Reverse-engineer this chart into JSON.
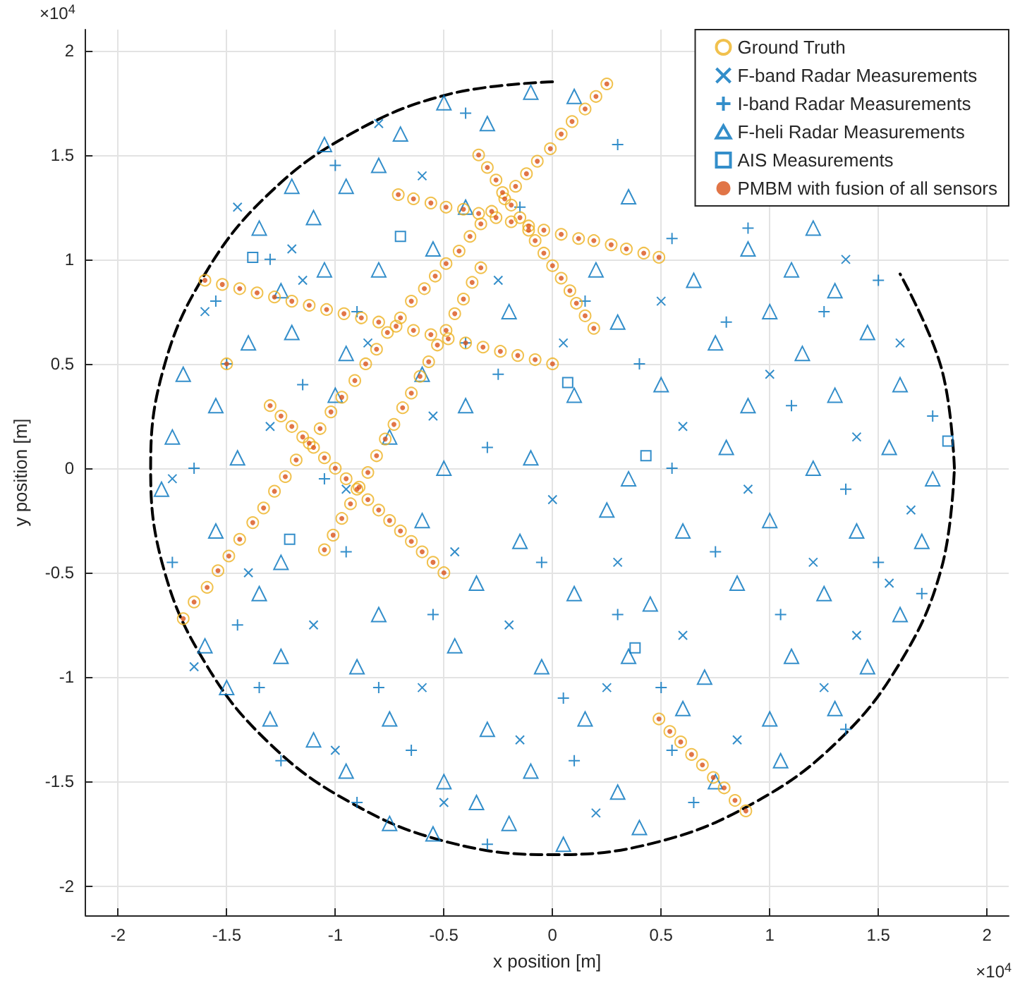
{
  "chart_data": {
    "type": "scatter",
    "xlabel": "x position [m]",
    "ylabel": "y position [m]",
    "annotations": [
      "×10$^{4}$",
      "×10$^{4}$"
    ],
    "xlim": [
      -2.15,
      2.1
    ],
    "ylim": [
      -2.14,
      2.1
    ],
    "xticks": [
      -2,
      -1.5,
      -1,
      -0.5,
      0,
      0.5,
      1,
      1.5,
      2
    ],
    "yticks": [
      -2,
      -1.5,
      -1,
      -0.5,
      0,
      0.5,
      1,
      1.5,
      2
    ],
    "grid": true,
    "legend": "top right",
    "series": [
      {
        "type": "line",
        "color": "#000000",
        "line_style": "dashed",
        "marker": "none",
        "x": [
          1.85,
          1.79,
          1.6,
          1.31,
          0.93,
          0.48,
          0,
          -0.48,
          -0.93,
          -1.31,
          -1.6,
          -1.79,
          -1.85,
          -1.79,
          -1.6,
          -1.31,
          -0.93,
          -0.48,
          0,
          0.48,
          0.93,
          1.31,
          1.6,
          1.79,
          1.85
        ],
        "values": [
          0,
          0.48,
          0.93,
          null,
          null,
          null,
          1.85,
          1.79,
          1.6,
          1.31,
          0.93,
          0.48,
          0,
          -0.48,
          -0.93,
          -1.31,
          -1.6,
          -1.79,
          -1.85,
          -1.79,
          -1.6,
          -1.31,
          -0.93,
          -0.48,
          0
        ]
      },
      {
        "name": "Ground Truth",
        "color": "#edb120",
        "marker": "circle",
        "x": [
          -1.6,
          -1.52,
          -1.44,
          -1.36,
          -1.28,
          -1.2,
          -1.12,
          -1.04,
          -0.96,
          -0.88,
          -0.8,
          -0.72,
          -0.64,
          -0.56,
          -0.48,
          -0.4,
          -0.32,
          -0.24,
          -0.16,
          -0.08,
          0,
          -1.7,
          -1.65,
          -1.59,
          -1.54,
          -1.49,
          -1.44,
          -1.38,
          -1.33,
          -1.28,
          -1.23,
          -1.18,
          -1.12,
          -1.07,
          -1.02,
          -0.97,
          -0.91,
          -0.86,
          -0.81,
          -0.76,
          -0.7,
          -0.65,
          -1.3,
          -1.25,
          -1.2,
          -1.15,
          -1.1,
          -1.05,
          -1,
          -0.95,
          -0.9,
          -0.85,
          -0.8,
          -0.75,
          -0.7,
          -0.65,
          -0.6,
          -0.55,
          -0.5,
          -1.05,
          -1.01,
          -0.97,
          -0.93,
          -0.89,
          -0.85,
          -0.81,
          -0.77,
          -0.73,
          -0.69,
          -0.65,
          -0.61,
          -0.57,
          -0.53,
          -0.49,
          -0.45,
          -0.41,
          -0.37,
          -0.33,
          -0.71,
          -0.64,
          -0.56,
          -0.49,
          -0.41,
          -0.34,
          -0.26,
          -0.19,
          -0.11,
          -0.04,
          0.04,
          0.12,
          0.19,
          0.27,
          0.34,
          0.42,
          0.49,
          -0.59,
          -0.54,
          -0.49,
          -0.43,
          -0.38,
          -0.33,
          -0.28,
          -0.22,
          -0.17,
          -0.12,
          -0.07,
          -0.01,
          0.04,
          0.09,
          0.15,
          0.2,
          0.25,
          -0.34,
          -0.3,
          -0.26,
          -0.23,
          -0.19,
          -0.15,
          -0.11,
          -0.08,
          -0.04,
          0,
          0.04,
          0.08,
          0.11,
          0.15,
          0.19,
          0.49,
          0.54,
          0.59,
          0.64,
          0.69,
          0.74,
          0.79,
          0.84,
          0.89,
          -1.5
        ],
        "values": [
          0.9,
          0.88,
          0.86,
          0.84,
          0.82,
          0.8,
          0.78,
          0.76,
          0.74,
          0.72,
          0.7,
          0.68,
          0.66,
          0.64,
          0.62,
          0.6,
          0.58,
          0.56,
          0.54,
          0.52,
          0.5,
          -0.72,
          -0.64,
          -0.57,
          -0.49,
          -0.42,
          -0.34,
          -0.26,
          -0.19,
          -0.11,
          -0.04,
          0.04,
          0.12,
          0.19,
          0.27,
          0.34,
          0.42,
          0.5,
          0.57,
          0.65,
          0.72,
          0.8,
          0.3,
          0.25,
          0.2,
          0.15,
          0.1,
          0.05,
          0,
          -0.05,
          -0.1,
          -0.15,
          -0.2,
          -0.25,
          -0.3,
          -0.35,
          -0.4,
          -0.45,
          -0.5,
          -0.39,
          -0.32,
          -0.24,
          -0.17,
          -0.09,
          -0.02,
          0.06,
          0.14,
          0.21,
          0.29,
          0.36,
          0.44,
          0.51,
          0.59,
          0.66,
          0.74,
          0.81,
          0.89,
          0.96,
          1.31,
          1.29,
          1.27,
          1.25,
          1.24,
          1.22,
          1.2,
          1.18,
          1.16,
          1.14,
          1.12,
          1.1,
          1.09,
          1.07,
          1.05,
          1.03,
          1.01,
          0.86,
          0.92,
          0.98,
          1.04,
          1.11,
          1.17,
          1.23,
          1.29,
          1.35,
          1.41,
          1.47,
          1.53,
          1.6,
          1.66,
          1.72,
          1.78,
          1.84,
          1.5,
          1.44,
          1.38,
          1.32,
          1.26,
          1.2,
          1.14,
          1.09,
          1.03,
          0.97,
          0.91,
          0.85,
          0.79,
          0.73,
          0.67,
          -1.2,
          -1.26,
          -1.31,
          -1.37,
          -1.42,
          -1.48,
          -1.53,
          -1.59,
          -1.64,
          0.5
        ]
      },
      {
        "name": "F-band Radar Measurements",
        "color": "#0072bd",
        "marker": "x",
        "x": [
          -0.8,
          -1.45,
          -0.6,
          -1.15,
          -0.25,
          0.5,
          1.35,
          -1.6,
          -0.85,
          0.05,
          1.0,
          1.6,
          -1.3,
          -0.55,
          0.6,
          1.4,
          -1.75,
          -0.95,
          0,
          0.9,
          1.65,
          -1.4,
          -0.45,
          0.3,
          1.2,
          -1.1,
          -0.2,
          0.6,
          1.4,
          -1.65,
          -0.6,
          0.25,
          1.25,
          -1,
          -0.15,
          0.85,
          -0.5,
          0.2,
          1.55,
          -1.2
        ],
        "values": [
          1.65,
          1.25,
          1.4,
          0.9,
          0.9,
          0.8,
          1.0,
          0.75,
          0.6,
          0.6,
          0.45,
          0.6,
          0.2,
          0.25,
          0.2,
          0.15,
          -0.05,
          -0.1,
          -0.15,
          -0.1,
          -0.2,
          -0.5,
          -0.4,
          -0.45,
          -0.45,
          -0.75,
          -0.75,
          -0.8,
          -0.8,
          -0.95,
          -1.05,
          -1.05,
          -1.05,
          -1.35,
          -1.3,
          -1.3,
          -1.6,
          -1.65,
          -0.55,
          1.05
        ]
      },
      {
        "name": "I-band Radar Measurements",
        "color": "#0072bd",
        "marker": "plus",
        "x": [
          -0.4,
          0.3,
          -1,
          -1.3,
          0.9,
          -0.9,
          -0.4,
          0.15,
          0.8,
          1.25,
          -1.5,
          -1.15,
          -0.25,
          0.4,
          1.1,
          1.75,
          -1.65,
          -1.05,
          -0.3,
          0.55,
          1.35,
          -1.75,
          -0.95,
          -0.05,
          0.75,
          1.5,
          -1.45,
          -0.55,
          0.3,
          1.05,
          1.7,
          -1.35,
          -0.8,
          0.05,
          0.5,
          1.35,
          -1.25,
          -0.65,
          0.1,
          0.55,
          -0.9,
          -0.3,
          0.65,
          -1.55,
          1.5,
          -0.15,
          0.55
        ],
        "values": [
          1.7,
          1.55,
          1.45,
          1,
          1.15,
          0.75,
          0.6,
          0.8,
          0.7,
          0.75,
          0.5,
          0.4,
          0.45,
          0.5,
          0.3,
          0.25,
          0,
          -0.05,
          0.1,
          0,
          -0.1,
          -0.45,
          -0.4,
          -0.45,
          -0.4,
          -0.45,
          -0.75,
          -0.7,
          -0.7,
          -0.7,
          -0.6,
          -1.05,
          -1.05,
          -1.1,
          -1.05,
          -1.25,
          -1.4,
          -1.35,
          -1.4,
          -1.35,
          -1.6,
          -1.8,
          -1.6,
          0.8,
          0.9,
          1.25,
          1.1
        ]
      },
      {
        "name": "F-heli Radar Measurements",
        "color": "#0072bd",
        "marker": "triangle",
        "x": [
          -0.5,
          -0.1,
          0.1,
          -0.3,
          -0.8,
          -1.05,
          -0.7,
          -0.95,
          -1.2,
          -1.35,
          -1.1,
          1.2,
          0.9,
          -0.4,
          0.35,
          -1.05,
          -0.8,
          -1.25,
          -0.55,
          1.1,
          1.3,
          0.65,
          0.2,
          1.0,
          -1.4,
          -1.2,
          -0.95,
          -0.2,
          0.3,
          0.75,
          1.15,
          1.45,
          -1.7,
          -0.6,
          -1.55,
          -1,
          -0.4,
          0.1,
          0.5,
          0.9,
          1.3,
          1.6,
          -1.75,
          -0.75,
          -1.45,
          -0.5,
          -0.1,
          0.35,
          0.8,
          1.2,
          1.55,
          1.75,
          -1.8,
          -1.55,
          -0.6,
          -0.15,
          0.25,
          0.6,
          1,
          1.4,
          1.7,
          -1.25,
          -1.35,
          -0.8,
          -0.35,
          0.1,
          0.45,
          0.85,
          1.25,
          1.6,
          -1.6,
          -1.25,
          -0.9,
          -0.45,
          -0.05,
          0.35,
          0.7,
          1.1,
          1.45,
          -1.5,
          -1.3,
          -0.75,
          -0.3,
          0.15,
          0.6,
          1,
          1.3,
          -1.1,
          -0.95,
          -0.5,
          -0.1,
          0.3,
          0.75,
          1.05,
          -0.35,
          -0.55,
          -0.2,
          0.05,
          0.4,
          -0.75
        ],
        "values": [
          1.75,
          1.8,
          1.78,
          1.65,
          1.45,
          1.55,
          1.6,
          1.35,
          1.35,
          1.15,
          1.2,
          1.15,
          1.05,
          1.25,
          1.3,
          0.95,
          0.95,
          0.85,
          1.05,
          0.95,
          0.85,
          0.9,
          0.95,
          0.75,
          0.6,
          0.65,
          0.55,
          0.75,
          0.7,
          0.6,
          0.55,
          0.65,
          0.45,
          0.45,
          0.3,
          0.35,
          0.3,
          0.35,
          0.4,
          0.3,
          0.35,
          0.4,
          0.15,
          0.15,
          0.05,
          0,
          0.05,
          -0.05,
          0.1,
          0,
          0.1,
          -0.05,
          -0.1,
          -0.3,
          -0.25,
          -0.35,
          -0.2,
          -0.3,
          -0.25,
          -0.3,
          -0.35,
          -0.45,
          -0.6,
          -0.7,
          -0.55,
          -0.6,
          -0.65,
          -0.55,
          -0.6,
          -0.7,
          -0.85,
          -0.9,
          -0.95,
          -0.85,
          -0.95,
          -0.9,
          -1,
          -0.9,
          -0.95,
          -1.05,
          -1.2,
          -1.2,
          -1.25,
          -1.2,
          -1.15,
          -1.2,
          -1.15,
          -1.3,
          -1.45,
          -1.5,
          -1.45,
          -1.55,
          -1.5,
          -1.4,
          -1.6,
          -1.75,
          -1.7,
          -1.8,
          -1.72,
          -1.7
        ]
      },
      {
        "name": "AIS Measurements",
        "color": "#0072bd",
        "marker": "square",
        "x": [
          -1.38,
          -0.7,
          -1.21,
          0.07,
          0.43,
          1.82,
          0.38
        ],
        "values": [
          1.01,
          1.11,
          -0.34,
          0.41,
          0.06,
          0.13,
          -0.86
        ]
      },
      {
        "name": "PMBM with fusion of all sensors",
        "color": "#d95319",
        "marker": "dot",
        "x": [
          -1.6,
          -1.52,
          -1.44,
          -1.36,
          -1.28,
          -1.2,
          -1.12,
          -1.04,
          -0.96,
          -0.88,
          -0.8,
          -0.72,
          -0.64,
          -0.56,
          -0.48,
          -0.4,
          -0.32,
          -0.24,
          -0.16,
          -0.08,
          0,
          -1.7,
          -1.65,
          -1.59,
          -1.54,
          -1.49,
          -1.44,
          -1.38,
          -1.33,
          -1.28,
          -1.23,
          -1.18,
          -1.12,
          -1.07,
          -1.02,
          -0.97,
          -0.91,
          -0.86,
          -0.81,
          -0.76,
          -0.7,
          -0.65,
          -1.3,
          -1.25,
          -1.2,
          -1.15,
          -1.1,
          -1.05,
          -1,
          -0.95,
          -0.9,
          -0.85,
          -0.8,
          -0.75,
          -0.7,
          -0.65,
          -0.6,
          -0.55,
          -0.5,
          -1.05,
          -1.01,
          -0.97,
          -0.93,
          -0.89,
          -0.85,
          -0.81,
          -0.77,
          -0.73,
          -0.69,
          -0.65,
          -0.61,
          -0.57,
          -0.53,
          -0.49,
          -0.45,
          -0.41,
          -0.37,
          -0.33,
          -0.71,
          -0.64,
          -0.56,
          -0.49,
          -0.41,
          -0.34,
          -0.26,
          -0.19,
          -0.11,
          -0.04,
          0.04,
          0.12,
          0.19,
          0.27,
          0.34,
          0.42,
          0.49,
          -0.59,
          -0.54,
          -0.49,
          -0.43,
          -0.38,
          -0.33,
          -0.28,
          -0.22,
          -0.17,
          -0.12,
          -0.07,
          -0.01,
          0.04,
          0.09,
          0.15,
          0.2,
          0.25,
          -0.34,
          -0.3,
          -0.26,
          -0.23,
          -0.19,
          -0.15,
          -0.11,
          -0.08,
          -0.04,
          0,
          0.04,
          0.08,
          0.11,
          0.15,
          0.19,
          0.49,
          0.54,
          0.59,
          0.64,
          0.69,
          0.74,
          0.79,
          0.84,
          0.89,
          -1.5
        ],
        "values": [
          0.9,
          0.88,
          0.86,
          0.84,
          0.82,
          0.8,
          0.78,
          0.76,
          0.74,
          0.72,
          0.7,
          0.68,
          0.66,
          0.64,
          0.62,
          0.6,
          0.58,
          0.56,
          0.54,
          0.52,
          0.5,
          -0.72,
          -0.64,
          -0.57,
          -0.49,
          -0.42,
          -0.34,
          -0.26,
          -0.19,
          -0.11,
          -0.04,
          0.04,
          0.12,
          0.19,
          0.27,
          0.34,
          0.42,
          0.5,
          0.57,
          0.65,
          0.72,
          0.8,
          0.3,
          0.25,
          0.2,
          0.15,
          0.1,
          0.05,
          0,
          -0.05,
          -0.1,
          -0.15,
          -0.2,
          -0.25,
          -0.3,
          -0.35,
          -0.4,
          -0.45,
          -0.5,
          -0.39,
          -0.32,
          -0.24,
          -0.17,
          -0.09,
          -0.02,
          0.06,
          0.14,
          0.21,
          0.29,
          0.36,
          0.44,
          0.51,
          0.59,
          0.66,
          0.74,
          0.81,
          0.89,
          0.96,
          1.31,
          1.29,
          1.27,
          1.25,
          1.24,
          1.22,
          1.2,
          1.18,
          1.16,
          1.14,
          1.12,
          1.1,
          1.09,
          1.07,
          1.05,
          1.03,
          1.01,
          0.86,
          0.92,
          0.98,
          1.04,
          1.11,
          1.17,
          1.23,
          1.29,
          1.35,
          1.41,
          1.47,
          1.53,
          1.6,
          1.66,
          1.72,
          1.78,
          1.84,
          1.5,
          1.44,
          1.38,
          1.32,
          1.26,
          1.2,
          1.14,
          1.09,
          1.03,
          0.97,
          0.91,
          0.85,
          0.79,
          0.73,
          0.67,
          -1.2,
          -1.26,
          -1.31,
          -1.37,
          -1.42,
          -1.48,
          -1.53,
          -1.59,
          -1.64,
          0.5
        ]
      }
    ]
  }
}
